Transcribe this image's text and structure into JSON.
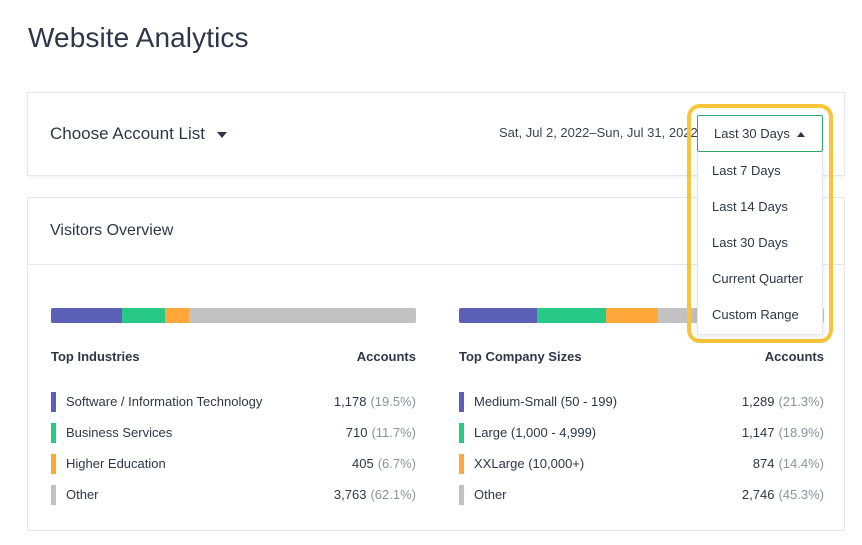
{
  "page": {
    "title": "Website Analytics"
  },
  "toolbar": {
    "account_list_label": "Choose Account List",
    "date_range_text": "Sat, Jul 2, 2022–Sun, Jul 31, 2022",
    "range_selected": "Last 30 Days",
    "range_options": [
      "Last 7 Days",
      "Last 14 Days",
      "Last 30 Days",
      "Current Quarter",
      "Custom Range"
    ]
  },
  "overview": {
    "title": "Visitors Overview"
  },
  "colors": {
    "series_1": "#5b5fb5",
    "series_2": "#28c987",
    "series_3": "#ffa73b",
    "series_4": "#c2c2c2",
    "highlight": "#f8c43a",
    "button_border": "#2fa76c"
  },
  "industries": {
    "header_label": "Top Industries",
    "header_value": "Accounts",
    "rows": [
      {
        "label": "Software / Information Technology",
        "count": "1,178",
        "pct": "(19.5%)",
        "share": 19.5,
        "color": "#5b5fb5"
      },
      {
        "label": "Business Services",
        "count": "710",
        "pct": "(11.7%)",
        "share": 11.7,
        "color": "#28c987"
      },
      {
        "label": "Higher Education",
        "count": "405",
        "pct": "(6.7%)",
        "share": 6.7,
        "color": "#ffa73b"
      },
      {
        "label": "Other",
        "count": "3,763",
        "pct": "(62.1%)",
        "share": 62.1,
        "color": "#c2c2c2"
      }
    ]
  },
  "company_sizes": {
    "header_label": "Top Company Sizes",
    "header_value": "Accounts",
    "rows": [
      {
        "label": "Medium-Small (50 - 199)",
        "count": "1,289",
        "pct": "(21.3%)",
        "share": 21.3,
        "color": "#5b5fb5"
      },
      {
        "label": "Large (1,000 - 4,999)",
        "count": "1,147",
        "pct": "(18.9%)",
        "share": 18.9,
        "color": "#28c987"
      },
      {
        "label": "XXLarge (10,000+)",
        "count": "874",
        "pct": "(14.4%)",
        "share": 14.4,
        "color": "#ffa73b"
      },
      {
        "label": "Other",
        "count": "2,746",
        "pct": "(45.3%)",
        "share": 45.3,
        "color": "#c2c2c2"
      }
    ]
  }
}
